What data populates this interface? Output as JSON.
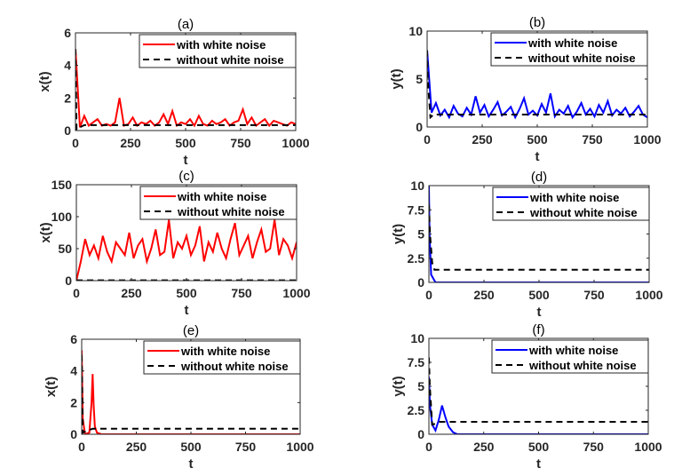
{
  "colors": {
    "noise_x": "#ff0000",
    "noise_y": "#0000ff",
    "deterministic": "#000000"
  },
  "chart_data": [
    {
      "type": "line",
      "title": "(a)",
      "xlabel": "t",
      "ylabel": "x(t)",
      "xlim": [
        0,
        1000
      ],
      "ylim": [
        0,
        6
      ],
      "xticks": [
        "0",
        "250",
        "500",
        "750",
        "1000"
      ],
      "yticks": [
        "0",
        "2",
        "4",
        "6"
      ],
      "legend": "top-right",
      "noise_color": "#ff0000",
      "series": [
        {
          "name": "with white noise",
          "style": "solid",
          "t_step": 20,
          "values": [
            5,
            0.2,
            0.9,
            0.3,
            0.5,
            0.7,
            0.3,
            0.4,
            0.3,
            0.5,
            2.0,
            0.3,
            0.4,
            0.8,
            0.3,
            0.5,
            0.4,
            0.6,
            0.3,
            0.5,
            1.0,
            0.4,
            1.2,
            0.3,
            0.5,
            0.4,
            0.7,
            0.3,
            0.9,
            0.4,
            0.3,
            0.6,
            0.4,
            0.5,
            0.7,
            0.3,
            0.5,
            0.6,
            1.3,
            0.4,
            0.8,
            0.3,
            0.5,
            0.7,
            0.3,
            0.6,
            0.5,
            0.4,
            0.3,
            0.5,
            0.4
          ]
        },
        {
          "name": "without white noise",
          "style": "dashed",
          "t": [
            0,
            5,
            20,
            40,
            1000
          ],
          "values": [
            5,
            0.05,
            0.2,
            0.33,
            0.33
          ]
        }
      ]
    },
    {
      "type": "line",
      "title": "(b)",
      "xlabel": "t",
      "ylabel": "y(t)",
      "xlim": [
        0,
        1000
      ],
      "ylim": [
        0,
        10
      ],
      "xticks": [
        "0",
        "250",
        "500",
        "750",
        "1000"
      ],
      "yticks": [
        "0",
        "5",
        "10"
      ],
      "legend": "top-right",
      "noise_color": "#0000ff",
      "series": [
        {
          "name": "with white noise",
          "style": "solid",
          "t_step": 20,
          "values": [
            8,
            1.5,
            2.5,
            1.2,
            1.8,
            1.0,
            2.2,
            1.4,
            1.1,
            2.0,
            1.3,
            3.2,
            1.5,
            2.3,
            1.1,
            1.8,
            2.6,
            1.2,
            1.6,
            2.1,
            1.0,
            1.9,
            3.0,
            1.3,
            1.7,
            1.2,
            2.4,
            1.5,
            3.5,
            1.1,
            1.8,
            1.4,
            2.2,
            1.0,
            1.6,
            2.5,
            1.3,
            1.9,
            1.1,
            2.3,
            1.5,
            2.7,
            1.2,
            1.8,
            1.4,
            2.0,
            1.1,
            1.6,
            2.2,
            1.3,
            1.0
          ]
        },
        {
          "name": "without white noise",
          "style": "dashed",
          "t": [
            0,
            3,
            15,
            30,
            1000
          ],
          "values": [
            8,
            5,
            1.0,
            1.3,
            1.3
          ]
        }
      ]
    },
    {
      "type": "line",
      "title": "(c)",
      "xlabel": "t",
      "ylabel": "x(t)",
      "xlim": [
        0,
        1000
      ],
      "ylim": [
        0,
        150
      ],
      "xticks": [
        "0",
        "250",
        "500",
        "750",
        "1000"
      ],
      "yticks": [
        "0",
        "50",
        "100",
        "150"
      ],
      "legend": "top-right",
      "noise_color": "#ff0000",
      "series": [
        {
          "name": "with white noise",
          "style": "solid",
          "t_step": 20,
          "values": [
            0,
            30,
            65,
            40,
            55,
            35,
            70,
            45,
            30,
            60,
            50,
            40,
            75,
            35,
            55,
            65,
            30,
            50,
            80,
            40,
            45,
            95,
            35,
            60,
            50,
            70,
            40,
            55,
            85,
            30,
            60,
            45,
            75,
            50,
            35,
            65,
            90,
            40,
            55,
            70,
            35,
            60,
            80,
            45,
            50,
            95,
            40,
            65,
            55,
            35,
            60
          ]
        },
        {
          "name": "without white noise",
          "style": "dashed",
          "t": [
            0,
            1000
          ],
          "values": [
            0.5,
            0.5
          ]
        }
      ]
    },
    {
      "type": "line",
      "title": "(d)",
      "xlabel": "t",
      "ylabel": "y(t)",
      "xlim": [
        0,
        1000
      ],
      "ylim": [
        0,
        10
      ],
      "xticks": [
        "0",
        "250",
        "500",
        "750",
        "1000"
      ],
      "yticks": [
        "0",
        "2.5",
        "5",
        "7.5",
        "10"
      ],
      "legend": "top-right",
      "noise_color": "#0000ff",
      "series": [
        {
          "name": "with white noise",
          "style": "solid",
          "t": [
            0,
            3,
            10,
            30,
            1000
          ],
          "values": [
            10,
            5,
            0.8,
            0,
            0
          ]
        },
        {
          "name": "without white noise",
          "style": "dashed",
          "t": [
            0,
            5,
            15,
            25,
            1000
          ],
          "values": [
            8,
            5,
            2,
            1.3,
            1.3
          ]
        }
      ]
    },
    {
      "type": "line",
      "title": "(e)",
      "xlabel": "t",
      "ylabel": "x(t)",
      "xlim": [
        0,
        1000
      ],
      "ylim": [
        0,
        6
      ],
      "xticks": [
        "0",
        "250",
        "500",
        "750",
        "1000"
      ],
      "yticks": [
        "0",
        "2",
        "4",
        "6"
      ],
      "legend": "top-right",
      "noise_color": "#ff0000",
      "series": [
        {
          "name": "with white noise",
          "style": "solid",
          "t": [
            0,
            5,
            15,
            35,
            45,
            50,
            55,
            60,
            70,
            90,
            1000
          ],
          "values": [
            5.3,
            1,
            0,
            0.1,
            2,
            3.8,
            1.8,
            0.5,
            0.1,
            0,
            0
          ]
        },
        {
          "name": "without white noise",
          "style": "dashed",
          "t": [
            0,
            5,
            20,
            50,
            1000
          ],
          "values": [
            5,
            0.1,
            0.2,
            0.35,
            0.35
          ]
        }
      ]
    },
    {
      "type": "line",
      "title": "(f)",
      "xlabel": "t",
      "ylabel": "y(t)",
      "xlim": [
        0,
        1000
      ],
      "ylim": [
        0,
        10
      ],
      "xticks": [
        "0",
        "250",
        "500",
        "750",
        "1000"
      ],
      "yticks": [
        "0",
        "2.5",
        "5",
        "7.5",
        "10"
      ],
      "legend": "top-right",
      "noise_color": "#0000ff",
      "series": [
        {
          "name": "with white noise",
          "style": "solid",
          "t": [
            0,
            5,
            15,
            30,
            45,
            60,
            75,
            90,
            110,
            130,
            1000
          ],
          "values": [
            6,
            3,
            1,
            0.4,
            1.5,
            3,
            1.8,
            0.8,
            0.2,
            0,
            0
          ]
        },
        {
          "name": "without white noise",
          "style": "dashed",
          "t": [
            0,
            4,
            15,
            30,
            50,
            1000
          ],
          "values": [
            8,
            5,
            1.0,
            1.1,
            1.3,
            1.3
          ]
        }
      ]
    }
  ]
}
